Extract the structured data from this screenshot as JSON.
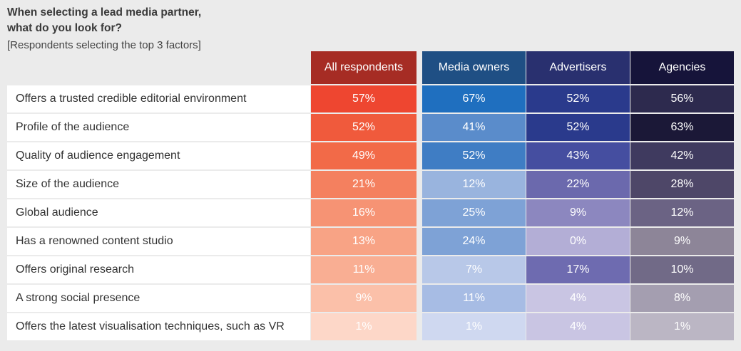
{
  "title_line1": "When selecting a lead media partner,",
  "title_line2": "what do you look for?",
  "subtitle": "[Respondents selecting the top 3 factors]",
  "chart_data": {
    "type": "table",
    "title": "When selecting a lead media partner, what do you look for?",
    "subtitle": "[Respondents selecting the top 3 factors]",
    "columns": [
      "All respondents",
      "Media owners",
      "Advertisers",
      "Agencies"
    ],
    "header_colors": [
      "#a62c24",
      "#1f4f84",
      "#29306f",
      "#16143a"
    ],
    "rows": [
      {
        "label": "Offers a trusted credible editorial environment",
        "values": [
          "57%",
          "67%",
          "52%",
          "56%"
        ],
        "colors": [
          "#ee4630",
          "#1f6fbf",
          "#2a3a8c",
          "#2d2a4e"
        ]
      },
      {
        "label": "Profile of the audience",
        "values": [
          "52%",
          "41%",
          "52%",
          "63%"
        ],
        "colors": [
          "#f05a3c",
          "#5a8ccb",
          "#2a3a8c",
          "#1b1837"
        ]
      },
      {
        "label": "Quality of audience engagement",
        "values": [
          "49%",
          "52%",
          "43%",
          "42%"
        ],
        "colors": [
          "#f26a48",
          "#3f7dc4",
          "#454ea0",
          "#3f3a5f"
        ]
      },
      {
        "label": "Size of the audience",
        "values": [
          "21%",
          "12%",
          "22%",
          "28%"
        ],
        "colors": [
          "#f4805f",
          "#99b4de",
          "#6b69ad",
          "#4e4768"
        ]
      },
      {
        "label": "Global audience",
        "values": [
          "16%",
          "25%",
          "9%",
          "12%"
        ],
        "colors": [
          "#f69374",
          "#7ea2d6",
          "#8c87bf",
          "#6b6384"
        ]
      },
      {
        "label": "Has a renowned content studio",
        "values": [
          "13%",
          "24%",
          "0%",
          "9%"
        ],
        "colors": [
          "#f8a385",
          "#7ea2d6",
          "#b3aed6",
          "#8d8598"
        ]
      },
      {
        "label": "Offers original research",
        "values": [
          "11%",
          "7%",
          "17%",
          "10%"
        ],
        "colors": [
          "#f9ae93",
          "#b8c8e8",
          "#6e6bb0",
          "#716a87"
        ]
      },
      {
        "label": "A strong social presence",
        "values": [
          "9%",
          "11%",
          "4%",
          "8%"
        ],
        "colors": [
          "#fbc0a9",
          "#a7bce4",
          "#c9c5e3",
          "#a49eb0"
        ]
      },
      {
        "label": "Offers the latest visualisation techniques, such as VR",
        "values": [
          "1%",
          "1%",
          "4%",
          "1%"
        ],
        "colors": [
          "#fdd7c8",
          "#cfd8f0",
          "#c9c5e3",
          "#bbb6c4"
        ]
      }
    ]
  }
}
